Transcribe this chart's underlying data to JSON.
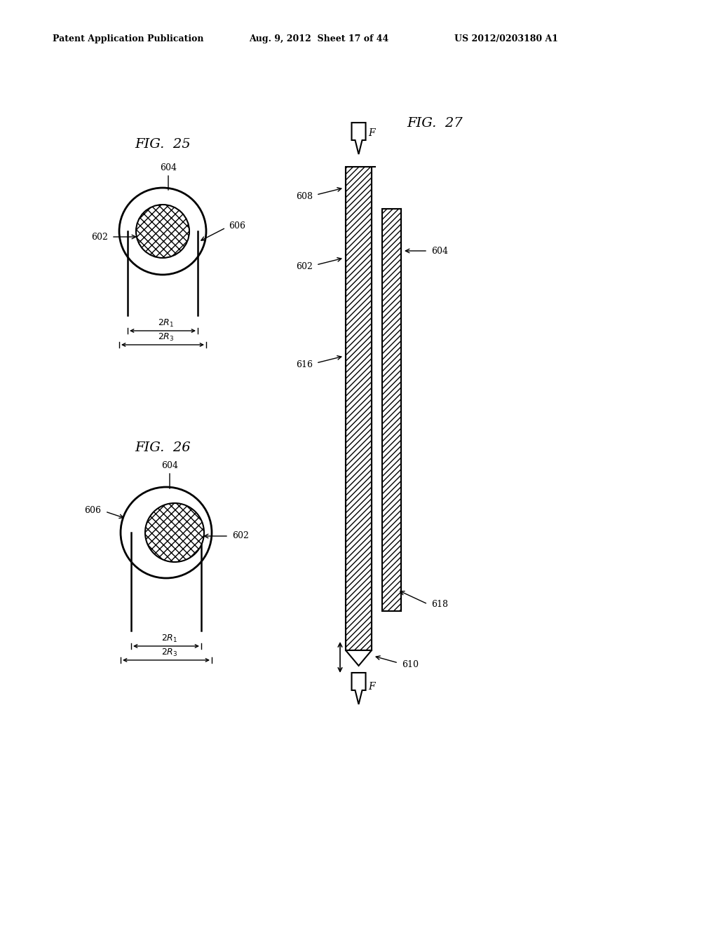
{
  "header_left": "Patent Application Publication",
  "header_mid": "Aug. 9, 2012  Sheet 17 of 44",
  "header_right": "US 2012/0203180 A1",
  "fig25_title": "FIG.  25",
  "fig26_title": "FIG.  26",
  "fig27_title": "FIG.  27",
  "bg_color": "#ffffff",
  "lc": "#000000"
}
